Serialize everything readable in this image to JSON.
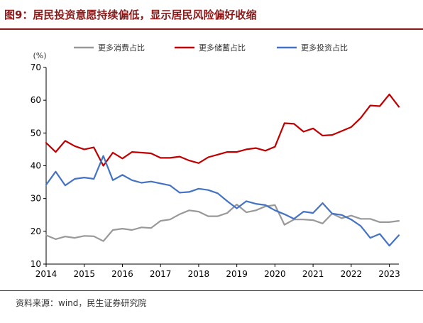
{
  "title": "图9：居民投资意愿持续偏低，显示居民风险偏好收缩",
  "source": "资料来源：wind，民生证券研究院",
  "chart_data": {
    "type": "line",
    "ylabel": "(%)",
    "ylim": [
      10,
      70
    ],
    "yticks": [
      10,
      20,
      30,
      40,
      50,
      60,
      70
    ],
    "xlim": [
      2014.0,
      2023.25
    ],
    "xticks": [
      2014,
      2015,
      2016,
      2017,
      2018,
      2019,
      2020,
      2021,
      2022,
      2023
    ],
    "x_tick_labels": [
      "2014",
      "2015",
      "2016",
      "2017",
      "2018",
      "2019",
      "2020",
      "2021",
      "2022",
      "2023"
    ],
    "grid": false,
    "legend_position": "top",
    "x": [
      2014.0,
      2014.25,
      2014.5,
      2014.75,
      2015.0,
      2015.25,
      2015.5,
      2015.75,
      2016.0,
      2016.25,
      2016.5,
      2016.75,
      2017.0,
      2017.25,
      2017.5,
      2017.75,
      2018.0,
      2018.25,
      2018.5,
      2018.75,
      2019.0,
      2019.25,
      2019.5,
      2019.75,
      2020.0,
      2020.25,
      2020.5,
      2020.75,
      2021.0,
      2021.25,
      2021.5,
      2021.75,
      2022.0,
      2022.25,
      2022.5,
      2022.75,
      2023.0,
      2023.25
    ],
    "series": [
      {
        "name": "更多消费占比",
        "color": "#999999",
        "values": [
          18.8,
          17.6,
          18.4,
          18.0,
          18.6,
          18.5,
          17.0,
          20.4,
          20.8,
          20.4,
          21.2,
          21.0,
          23.2,
          23.6,
          25.2,
          26.4,
          26.0,
          24.6,
          24.6,
          25.6,
          28.2,
          25.8,
          26.4,
          27.6,
          28.0,
          22.0,
          23.6,
          23.6,
          23.4,
          22.4,
          25.4,
          24.0,
          24.8,
          23.8,
          23.8,
          22.8,
          22.8,
          23.2
        ]
      },
      {
        "name": "更多储蓄占比",
        "color": "#c00000",
        "values": [
          47.0,
          44.2,
          47.6,
          46.0,
          45.0,
          45.6,
          40.0,
          44.0,
          42.2,
          44.2,
          44.0,
          43.8,
          42.4,
          42.4,
          42.8,
          41.6,
          40.8,
          42.6,
          43.4,
          44.2,
          44.2,
          45.0,
          45.4,
          44.6,
          45.8,
          53.0,
          52.8,
          50.4,
          51.4,
          49.2,
          49.4,
          50.6,
          51.8,
          54.6,
          58.4,
          58.2,
          61.8,
          58.0
        ]
      },
      {
        "name": "更多投资占比",
        "color": "#4472c4",
        "values": [
          34.2,
          38.2,
          34.0,
          36.0,
          36.4,
          36.0,
          43.0,
          35.6,
          37.2,
          35.6,
          34.8,
          35.2,
          34.6,
          34.0,
          31.8,
          32.0,
          33.0,
          32.6,
          31.6,
          29.2,
          27.0,
          29.2,
          28.4,
          28.0,
          26.4,
          25.2,
          23.8,
          26.0,
          25.6,
          28.6,
          25.4,
          25.0,
          23.6,
          21.6,
          18.0,
          19.2,
          15.6,
          18.8
        ]
      }
    ]
  }
}
